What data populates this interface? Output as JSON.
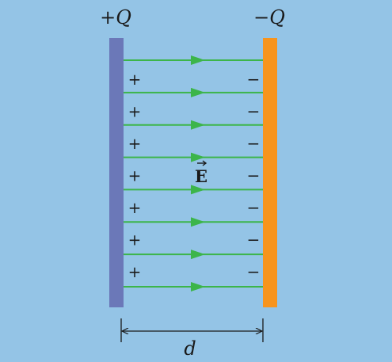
{
  "figure": {
    "background_color": "#94c4e6",
    "positive_plate": {
      "label": "+Q",
      "color": "#6b78b8"
    },
    "negative_plate": {
      "label": "−Q",
      "color": "#f7941d"
    },
    "field_line_color": "#3cb54a",
    "field_line_count": 8,
    "field_label": "E",
    "positive_charge_symbol": "+",
    "positive_charge_count": 7,
    "negative_charge_symbol": "−",
    "negative_charge_count": 7,
    "separation_label": "d"
  }
}
